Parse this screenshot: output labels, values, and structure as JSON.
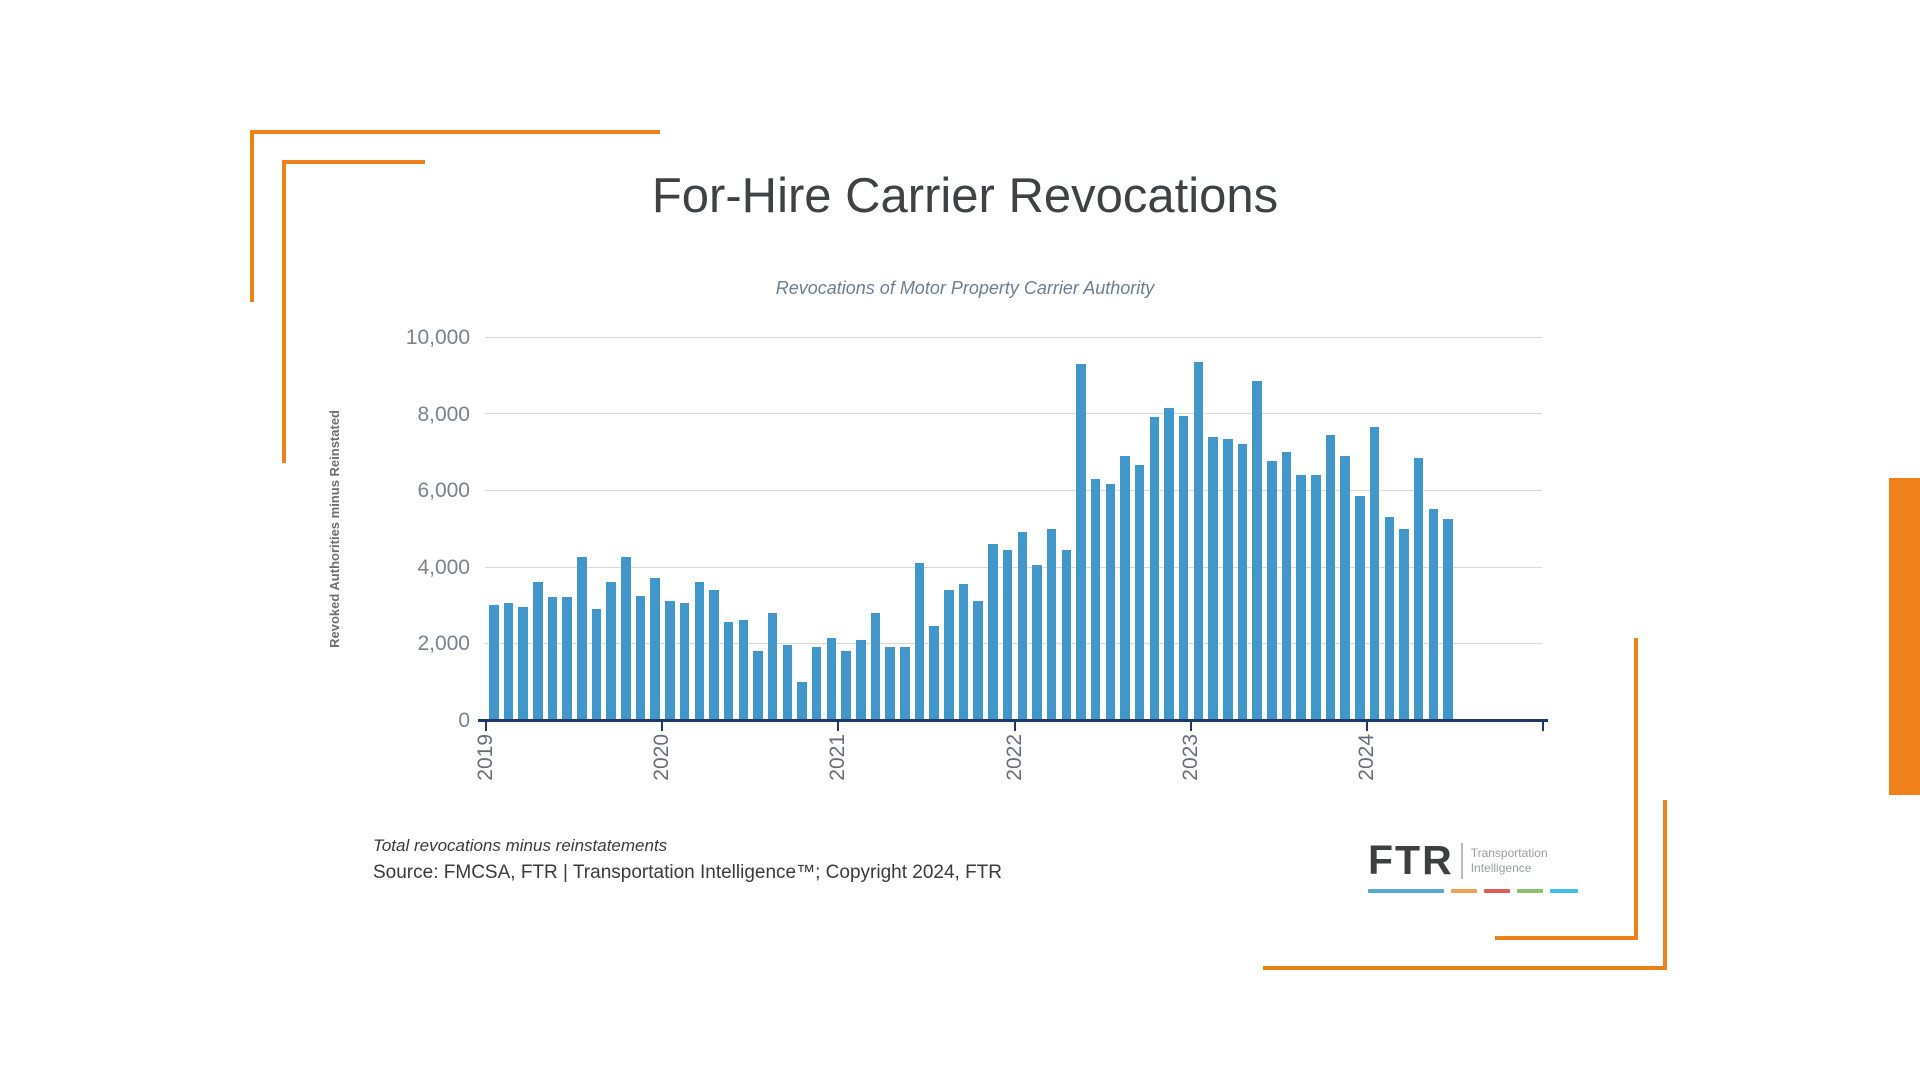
{
  "slide": {
    "title": "For-Hire Carrier Revocations",
    "subtitle": "Revocations of Motor Property Carrier Authority",
    "note_line1": "Total revocations minus reinstatements",
    "note_line2": "Source: FMCSA, FTR | Transportation Intelligence™; Copyright 2024, FTR",
    "accent_orange": "#F08019",
    "bar_blue": "#4197C9",
    "axis_navy": "#1F3864",
    "gridline_gray": "#D9D9D9"
  },
  "logo": {
    "brand": "FTR",
    "tagline_line1": "Transportation",
    "tagline_line2": "Intelligence",
    "dash_colors": [
      "#55A8D4",
      "#F0A057",
      "#E25B5B",
      "#8CBF6C",
      "#3FC0E8"
    ],
    "dash_widths": [
      76,
      26,
      26,
      26,
      28
    ]
  },
  "chart_data": {
    "type": "bar",
    "title": "For-Hire Carrier Revocations",
    "subtitle": "Revocations of Motor Property Carrier Authority",
    "ylabel": "Revoked Authorities minus Reinstated",
    "xlabel": "",
    "ylim": [
      0,
      10000
    ],
    "ytick_interval": 2000,
    "ytick_labels": [
      "10,000",
      "8,000",
      "6,000",
      "4,000",
      "2,000",
      "0"
    ],
    "grid": true,
    "legend": false,
    "bar_cadence": "monthly",
    "x_start": "2019-01",
    "x_end": "2024-06",
    "year_labels": [
      "2019",
      "2020",
      "2021",
      "2022",
      "2023",
      "2024"
    ],
    "axis_months_span": 72,
    "series": [
      {
        "name": "Revoked Authorities minus Reinstated",
        "values": [
          3000,
          3050,
          2950,
          3600,
          3200,
          3200,
          4250,
          2900,
          3600,
          4250,
          3250,
          3700,
          3100,
          3050,
          3600,
          3400,
          2550,
          2600,
          1800,
          2800,
          1950,
          1000,
          1900,
          2150,
          1800,
          2100,
          2800,
          1900,
          1900,
          4100,
          2450,
          3400,
          3550,
          3100,
          4600,
          4450,
          4900,
          4050,
          5000,
          4450,
          9300,
          6300,
          6150,
          6900,
          6650,
          7900,
          8150,
          7950,
          9350,
          7400,
          7350,
          7200,
          8850,
          6750,
          7000,
          6400,
          6400,
          7450,
          6900,
          5850,
          7650,
          5300,
          5000,
          6850,
          5500,
          5250
        ]
      }
    ]
  }
}
